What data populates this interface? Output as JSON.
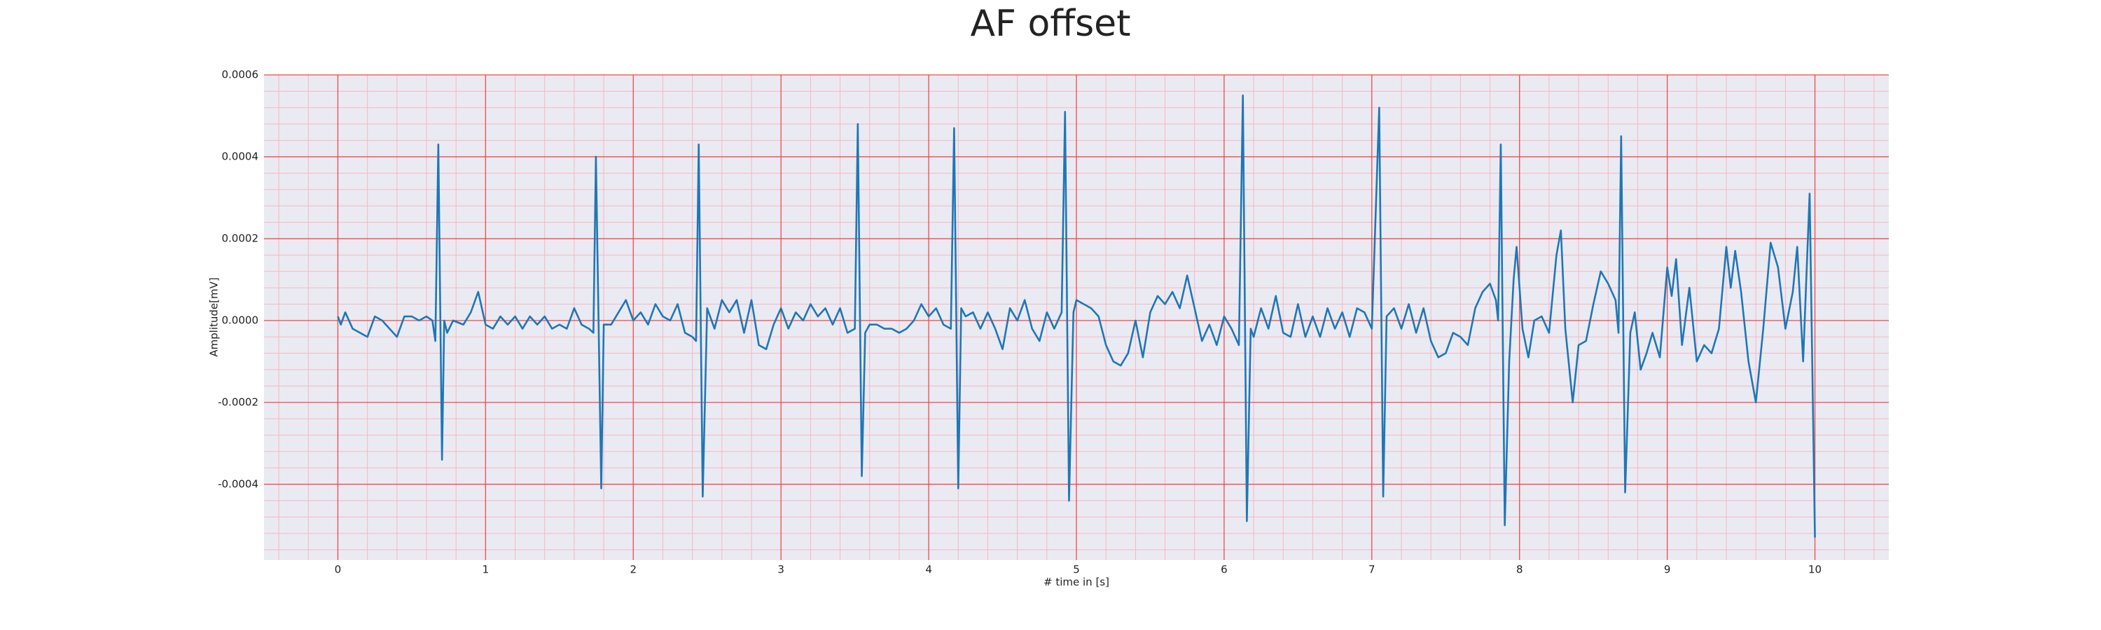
{
  "chart_data": {
    "type": "line",
    "title": "AF offset",
    "xlabel": "# time in [s]",
    "ylabel": "Amplitude[mV]",
    "xlim": [
      -0.5,
      10.5
    ],
    "ylim": [
      -0.000585,
      0.0006
    ],
    "xticks": [
      0,
      1,
      2,
      3,
      4,
      5,
      6,
      7,
      8,
      9,
      10
    ],
    "yticks": [
      {
        "value": -0.0004,
        "label": "-0.0004"
      },
      {
        "value": -0.0002,
        "label": "-0.0002"
      },
      {
        "value": 0,
        "label": "0.0000"
      },
      {
        "value": 0.0002,
        "label": "0.0002"
      },
      {
        "value": 0.0004,
        "label": "0.0004"
      },
      {
        "value": 0.0006,
        "label": "0.0006"
      }
    ],
    "grid": true,
    "grid_color": "#f04a4a",
    "minor_grid": true,
    "minor_grid_color": "#f4b8c4",
    "minor_grid_divisions": 5,
    "background": "#eaeaf2",
    "x": [
      0,
      0.02,
      0.05,
      0.1,
      0.15,
      0.2,
      0.25,
      0.3,
      0.35,
      0.4,
      0.45,
      0.5,
      0.55,
      0.6,
      0.64,
      0.66,
      0.68,
      0.705,
      0.72,
      0.74,
      0.78,
      0.85,
      0.9,
      0.95,
      1.0,
      1.05,
      1.1,
      1.15,
      1.2,
      1.25,
      1.3,
      1.35,
      1.4,
      1.45,
      1.5,
      1.55,
      1.6,
      1.65,
      1.7,
      1.73,
      1.747,
      1.783,
      1.8,
      1.85,
      1.9,
      1.95,
      2.0,
      2.05,
      2.1,
      2.15,
      2.2,
      2.25,
      2.3,
      2.35,
      2.4,
      2.425,
      2.443,
      2.47,
      2.5,
      2.55,
      2.6,
      2.65,
      2.7,
      2.75,
      2.8,
      2.85,
      2.9,
      2.95,
      3.0,
      3.05,
      3.1,
      3.15,
      3.2,
      3.25,
      3.3,
      3.35,
      3.4,
      3.45,
      3.5,
      3.52,
      3.547,
      3.57,
      3.6,
      3.65,
      3.7,
      3.75,
      3.8,
      3.85,
      3.9,
      3.95,
      4.0,
      4.05,
      4.1,
      4.15,
      4.172,
      4.2,
      4.22,
      4.25,
      4.3,
      4.35,
      4.4,
      4.45,
      4.5,
      4.55,
      4.6,
      4.65,
      4.7,
      4.75,
      4.8,
      4.85,
      4.9,
      4.923,
      4.95,
      4.98,
      5.0,
      5.05,
      5.1,
      5.15,
      5.2,
      5.25,
      5.3,
      5.35,
      5.4,
      5.45,
      5.5,
      5.55,
      5.6,
      5.65,
      5.7,
      5.75,
      5.8,
      5.85,
      5.9,
      5.95,
      6.0,
      6.05,
      6.1,
      6.127,
      6.154,
      6.18,
      6.2,
      6.25,
      6.3,
      6.35,
      6.4,
      6.45,
      6.5,
      6.55,
      6.6,
      6.65,
      6.7,
      6.75,
      6.8,
      6.85,
      6.9,
      6.95,
      7.0,
      7.05,
      7.077,
      7.1,
      7.15,
      7.2,
      7.25,
      7.3,
      7.35,
      7.4,
      7.45,
      7.5,
      7.55,
      7.6,
      7.65,
      7.7,
      7.75,
      7.8,
      7.84,
      7.855,
      7.873,
      7.9,
      7.93,
      7.96,
      7.98,
      8.02,
      8.06,
      8.1,
      8.15,
      8.2,
      8.25,
      8.28,
      8.31,
      8.36,
      8.4,
      8.45,
      8.5,
      8.55,
      8.6,
      8.65,
      8.67,
      8.688,
      8.715,
      8.75,
      8.78,
      8.82,
      8.86,
      8.9,
      8.95,
      9.0,
      9.03,
      9.06,
      9.1,
      9.15,
      9.2,
      9.25,
      9.3,
      9.35,
      9.4,
      9.43,
      9.46,
      9.5,
      9.55,
      9.6,
      9.65,
      9.7,
      9.75,
      9.8,
      9.85,
      9.88,
      9.92,
      9.964,
      10.0
    ],
    "series": [
      {
        "color": "#1f77b4",
        "values": [
          1e-05,
          -1e-05,
          2e-05,
          -2e-05,
          -3e-05,
          -4e-05,
          1e-05,
          0,
          -2e-05,
          -4e-05,
          1e-05,
          1e-05,
          0,
          1e-05,
          0,
          -5e-05,
          0.00043,
          -0.00034,
          0,
          -3e-05,
          0,
          -1e-05,
          2e-05,
          7e-05,
          -1e-05,
          -2e-05,
          1e-05,
          -1e-05,
          1e-05,
          -2e-05,
          1e-05,
          -1e-05,
          1e-05,
          -2e-05,
          -1e-05,
          -2e-05,
          3e-05,
          -1e-05,
          -2e-05,
          -3e-05,
          0.0004,
          -0.00041,
          -1e-05,
          -1e-05,
          2e-05,
          5e-05,
          0,
          2e-05,
          -1e-05,
          4e-05,
          1e-05,
          0,
          4e-05,
          -3e-05,
          -4e-05,
          -5e-05,
          0.00043,
          -0.00043,
          3e-05,
          -2e-05,
          5e-05,
          2e-05,
          5e-05,
          -3e-05,
          5e-05,
          -6e-05,
          -7e-05,
          -1e-05,
          3e-05,
          -2e-05,
          2e-05,
          0,
          4e-05,
          1e-05,
          3e-05,
          -1e-05,
          3e-05,
          -3e-05,
          -2e-05,
          0.00048,
          -0.00038,
          -3e-05,
          -1e-05,
          -1e-05,
          -2e-05,
          -2e-05,
          -3e-05,
          -2e-05,
          0,
          4e-05,
          1e-05,
          3e-05,
          -1e-05,
          -2e-05,
          0.00047,
          -0.00041,
          3e-05,
          1e-05,
          2e-05,
          -2e-05,
          2e-05,
          -2e-05,
          -7e-05,
          3e-05,
          0,
          5e-05,
          -2e-05,
          -5e-05,
          2e-05,
          -2e-05,
          2e-05,
          0.00051,
          -0.00044,
          2e-05,
          5e-05,
          4e-05,
          3e-05,
          1e-05,
          -6e-05,
          -0.0001,
          -0.00011,
          -8e-05,
          0,
          -9e-05,
          2e-05,
          6e-05,
          4e-05,
          7e-05,
          3e-05,
          0.00011,
          3e-05,
          -5e-05,
          -1e-05,
          -6e-05,
          1e-05,
          -2e-05,
          -6e-05,
          0.00055,
          -0.00049,
          -2e-05,
          -4e-05,
          3e-05,
          -2e-05,
          6e-05,
          -3e-05,
          -4e-05,
          4e-05,
          -4e-05,
          1e-05,
          -4e-05,
          3e-05,
          -2e-05,
          2e-05,
          -4e-05,
          3e-05,
          2e-05,
          -2e-05,
          0.00052,
          -0.00043,
          1e-05,
          3e-05,
          -2e-05,
          4e-05,
          -3e-05,
          3e-05,
          -5e-05,
          -9e-05,
          -8e-05,
          -3e-05,
          -4e-05,
          -6e-05,
          3e-05,
          7e-05,
          9e-05,
          5e-05,
          0,
          0.00043,
          -0.0005,
          -0.0001,
          0.0001,
          0.00018,
          -2e-05,
          -9e-05,
          0,
          1e-05,
          -3e-05,
          0.00016,
          0.00022,
          -2e-05,
          -0.0002,
          -6e-05,
          -5e-05,
          4e-05,
          0.00012,
          9e-05,
          5e-05,
          -3e-05,
          0.00045,
          -0.00042,
          -3e-05,
          2e-05,
          -0.00012,
          -8e-05,
          -3e-05,
          -9e-05,
          0.00013,
          6e-05,
          0.00015,
          -6e-05,
          8e-05,
          -0.0001,
          -6e-05,
          -8e-05,
          -2e-05,
          0.00018,
          8e-05,
          0.00017,
          7e-05,
          -0.0001,
          -0.0002,
          -2e-05,
          0.00019,
          0.00013,
          -2e-05,
          7e-05,
          0.00018,
          -0.0001,
          0.00031,
          -0.00053
        ]
      }
    ]
  }
}
